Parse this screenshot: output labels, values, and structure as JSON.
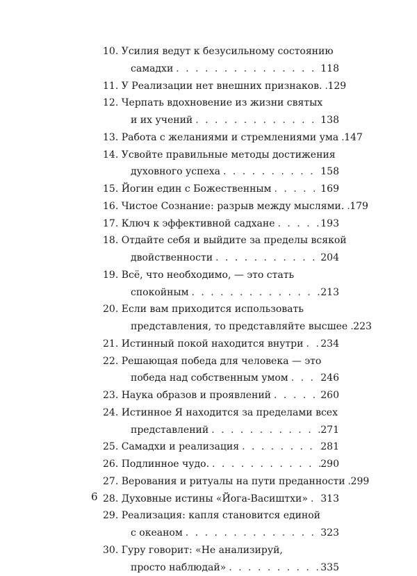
{
  "toc": [
    {
      "num": "10.",
      "lines": [
        "Усилия ведут к безусильному состоянию",
        "самадхи"
      ],
      "page": "118"
    },
    {
      "num": "11.",
      "lines": [
        "У Реализации нет внешних признаков."
      ],
      "page": "129"
    },
    {
      "num": "12.",
      "lines": [
        "Черпать вдохновение из жизни святых",
        "и их учений"
      ],
      "page": "138"
    },
    {
      "num": "13.",
      "lines": [
        "Работа с желаниями и стремлениями ума"
      ],
      "page": "147"
    },
    {
      "num": "14.",
      "lines": [
        "Усвойте правильные методы достижения",
        "духовного успеха"
      ],
      "page": "158"
    },
    {
      "num": "15.",
      "lines": [
        "Йогин един с Божественным"
      ],
      "page": "169"
    },
    {
      "num": "16.",
      "lines": [
        "Чистое Сознание: разрыв между мыслями."
      ],
      "page": "179"
    },
    {
      "num": "17.",
      "lines": [
        "Ключ к эффективной садхане"
      ],
      "page": "193"
    },
    {
      "num": "18.",
      "lines": [
        "Отдайте себя и выйдите за пределы всякой",
        "двойственности"
      ],
      "page": "204"
    },
    {
      "num": "19.",
      "lines": [
        "Всё, что необходимо, — это стать",
        "спокойным"
      ],
      "page": "213"
    },
    {
      "num": "20.",
      "lines": [
        "Если вам приходится использовать",
        "представления, то представляйте высшее"
      ],
      "page": "223"
    },
    {
      "num": "21.",
      "lines": [
        "Истинный покой находится внутри"
      ],
      "page": "234"
    },
    {
      "num": "22.",
      "lines": [
        "Решающая победа для человека — это",
        "победа над собственным умом"
      ],
      "page": "246"
    },
    {
      "num": "23.",
      "lines": [
        "Наука образов и проявлений"
      ],
      "page": "260"
    },
    {
      "num": "24.",
      "lines": [
        "Истинное Я находится за пределами всех",
        "представлений"
      ],
      "page": "271"
    },
    {
      "num": "25.",
      "lines": [
        "Самадхи и реализация"
      ],
      "page": "281"
    },
    {
      "num": "26.",
      "lines": [
        "Подлинное чудо."
      ],
      "page": "290"
    },
    {
      "num": "27.",
      "lines": [
        "Верования и ритуалы на пути преданности"
      ],
      "page": "299"
    },
    {
      "num": "28.",
      "lines": [
        "Духовные истины «Йога-Васиштхи»"
      ],
      "page": "313"
    },
    {
      "num": "29.",
      "lines": [
        "Реализация: капля становится единой",
        "с океаном"
      ],
      "page": "323"
    },
    {
      "num": "30.",
      "lines": [
        "Гуру говорит: «Не анализируй,",
        "просто наблюдай»"
      ],
      "page": "335"
    }
  ],
  "folio": "6"
}
